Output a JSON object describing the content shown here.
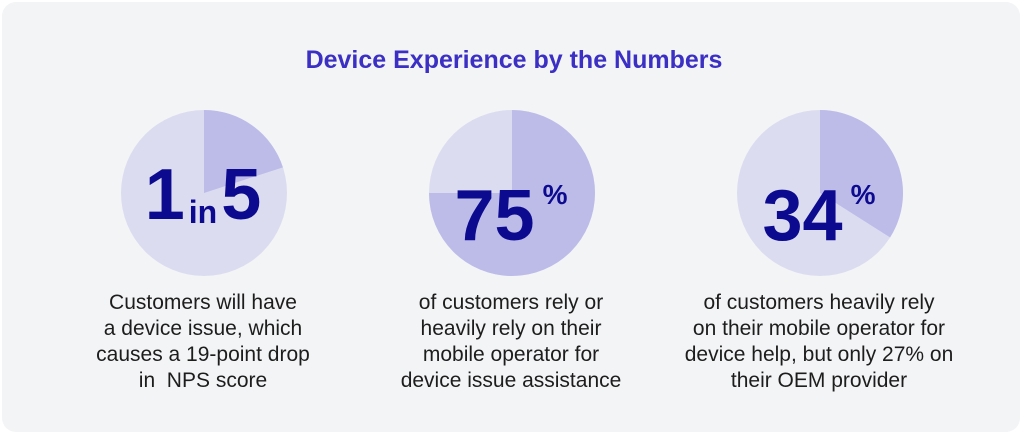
{
  "title": "Device Experience by the Numbers",
  "colors": {
    "background": "#f3f4f6",
    "pie_base": "#dcdcf1",
    "pie_slice": "#bdbce9",
    "stat_text": "#0c0a8e",
    "title": "#3b2fc4"
  },
  "stats": [
    {
      "num": "1",
      "mid": "in",
      "num2": "5",
      "sup": "",
      "desc_lines": [
        "Customers will have",
        "a device issue, which",
        "causes a 19-point drop",
        "in  NPS score"
      ]
    },
    {
      "num": "75",
      "mid": "",
      "num2": "",
      "sup": "%",
      "desc_lines": [
        "of customers rely or",
        "heavily rely on their",
        "mobile operator for",
        "device issue assistance"
      ]
    },
    {
      "num": "34",
      "mid": "",
      "num2": "",
      "sup": "%",
      "desc_lines": [
        "of customers heavily rely",
        "on their mobile operator for",
        "device help, but only 27% on",
        "their OEM provider"
      ]
    }
  ],
  "chart_data": {
    "type": "pie",
    "charts": [
      {
        "label": "1 in 5",
        "values": [
          20,
          80
        ]
      },
      {
        "label": "75%",
        "values": [
          75,
          25
        ]
      },
      {
        "label": "34%",
        "values": [
          34,
          66
        ]
      }
    ]
  }
}
